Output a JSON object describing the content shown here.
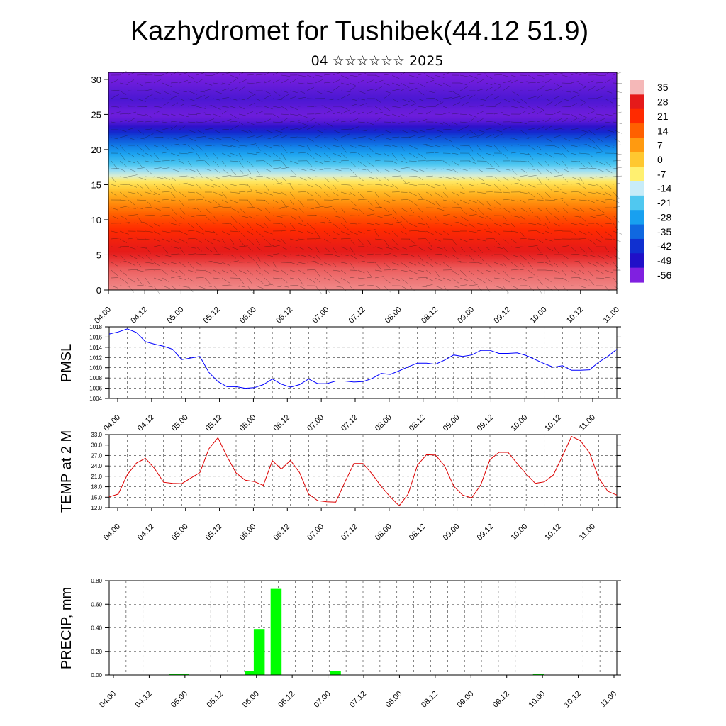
{
  "header": {
    "title": "Kazhydromet for Tushibek(44.12 51.9)",
    "subtitle": "04 ☆☆☆☆☆☆ 2025"
  },
  "x_tick_labels": [
    "04.00",
    "04.12",
    "05.00",
    "05.12",
    "06.00",
    "06.12",
    "07.00",
    "07.12",
    "08.00",
    "08.12",
    "09.00",
    "09.12",
    "10.00",
    "10.12",
    "11.00"
  ],
  "chart_data": [
    {
      "id": "cross-section",
      "type": "heatmap",
      "description_x": "time steps 04.00 to 11.00",
      "yticks": [
        0,
        5,
        10,
        15,
        20,
        25,
        30
      ],
      "ylim": [
        0,
        31
      ],
      "colorbar": {
        "labels": [
          "35",
          "28",
          "21",
          "14",
          "7",
          "0",
          "-7",
          "-14",
          "-21",
          "-28",
          "-35",
          "-42",
          "-49",
          "-56"
        ],
        "colors": [
          "#f5b8b8",
          "#e51a1a",
          "#ff2a00",
          "#ff6000",
          "#ff9a10",
          "#ffc830",
          "#fff070",
          "#c8ecf8",
          "#50c8f0",
          "#18a0f0",
          "#1068e0",
          "#1030d0",
          "#2010c8",
          "#8020e0"
        ]
      },
      "temperature_profile": {
        "heights": [
          0,
          3,
          6,
          9,
          12,
          14,
          15.5,
          16.5,
          18,
          20,
          22,
          23.5,
          25,
          27,
          29,
          31
        ],
        "values": [
          33,
          31,
          27,
          20,
          10,
          2,
          -6,
          -14,
          -22,
          -30,
          -40,
          -52,
          -55,
          -52,
          -54,
          -56
        ]
      }
    },
    {
      "id": "pmsl",
      "type": "line",
      "ylabel": "PMSL",
      "yticks": [
        "1004",
        "1006",
        "1008",
        "1010",
        "1012",
        "1014",
        "1016",
        "1018"
      ],
      "ylim": [
        1004,
        1018
      ],
      "color": "#0000ff",
      "values": [
        1016.6,
        1017,
        1017.6,
        1016.9,
        1015.1,
        1014.6,
        1014.2,
        1013.6,
        1011.6,
        1011.9,
        1012.2,
        1009.1,
        1007.3,
        1006.3,
        1006.3,
        1006,
        1006.1,
        1006.7,
        1007.8,
        1006.8,
        1006.2,
        1006.7,
        1007.8,
        1006.9,
        1006.9,
        1007.4,
        1007.4,
        1007.2,
        1007.3,
        1007.9,
        1008.9,
        1008.7,
        1009.4,
        1010.2,
        1010.9,
        1010.9,
        1010.7,
        1011.5,
        1012.5,
        1012.2,
        1012.5,
        1013.4,
        1013.4,
        1012.8,
        1012.8,
        1012.9,
        1012.4,
        1011.6,
        1010.8,
        1010.1,
        1010.4,
        1009.5,
        1009.5,
        1009.6,
        1011.1,
        1012.2,
        1013.6
      ]
    },
    {
      "id": "temp",
      "type": "line",
      "ylabel": "TEMP at 2 M",
      "yticks": [
        "12.0",
        "15.0",
        "18.0",
        "21.0",
        "24.0",
        "27.0",
        "30.0",
        "33.0"
      ],
      "ylim": [
        12,
        33
      ],
      "color": "#dd0000",
      "values": [
        15.1,
        15.9,
        21.5,
        24.8,
        26.2,
        23.3,
        19.3,
        19,
        18.9,
        20.5,
        22.1,
        28.9,
        32.1,
        26.7,
        22,
        19.9,
        19.5,
        18.4,
        25.5,
        23.1,
        25.6,
        22.1,
        15.9,
        14,
        13.7,
        13.6,
        19.3,
        24.7,
        24.7,
        21.7,
        18.1,
        15.1,
        12.5,
        16,
        24.2,
        27.2,
        27.1,
        24,
        18.2,
        15.6,
        14.8,
        18.6,
        25.8,
        27.9,
        27.9,
        24.7,
        21.7,
        19,
        19.4,
        21.4,
        26.8,
        32.5,
        31.2,
        27.7,
        20.5,
        16.7,
        15.6
      ]
    },
    {
      "id": "precip",
      "type": "bar",
      "ylabel": "PRECIP, mm",
      "yticks": [
        "0.00",
        "0.20",
        "0.40",
        "0.60",
        "0.80"
      ],
      "ylim": [
        0,
        0.8
      ],
      "color": "#00ff00",
      "bars": [
        {
          "x": 7,
          "value": 0.01
        },
        {
          "x": 8,
          "value": 0.01
        },
        {
          "x": 16,
          "value": 0.03
        },
        {
          "x": 17,
          "value": 0.39
        },
        {
          "x": 19,
          "value": 0.73
        },
        {
          "x": 26,
          "value": 0.03
        },
        {
          "x": 50,
          "value": 0.01
        }
      ]
    }
  ]
}
